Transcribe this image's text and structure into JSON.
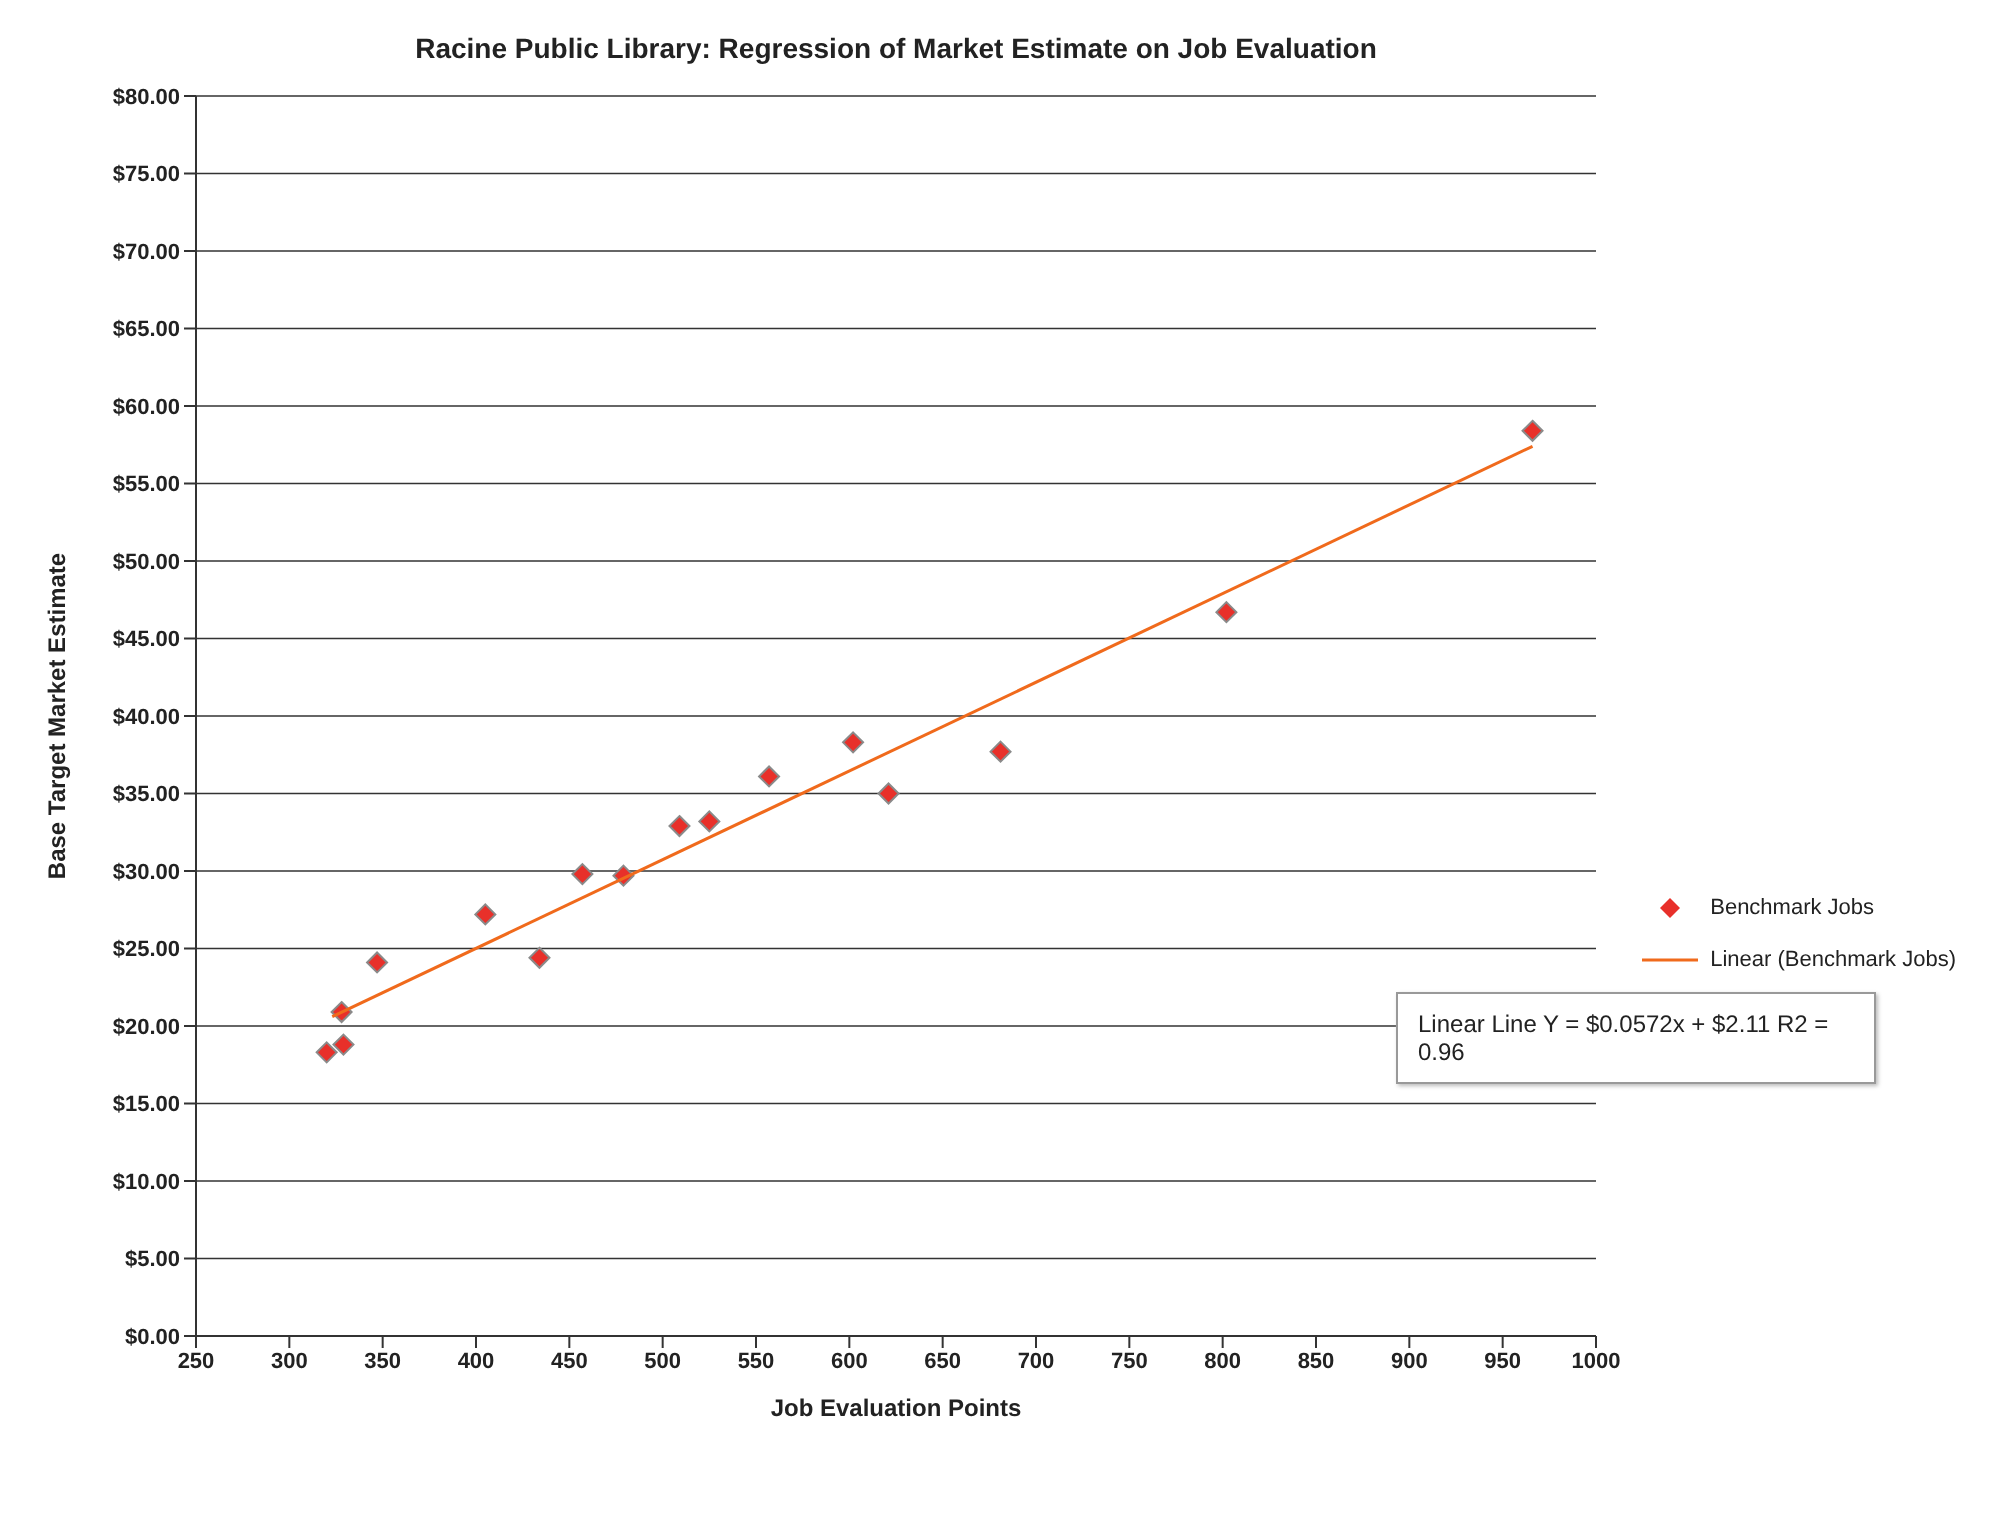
{
  "chart_data": {
    "type": "scatter",
    "title": "Racine Public Library: Regression of Market Estimate on Job Evaluation",
    "xlabel": "Job Evaluation Points",
    "ylabel": "Base Target Market Estimate",
    "series": [
      {
        "name": "Benchmark Jobs",
        "color": "#e8302a",
        "marker": "diamond",
        "x": [
          320,
          328,
          329,
          347,
          405,
          434,
          457,
          479,
          509,
          525,
          557,
          602,
          621,
          681,
          802,
          966
        ],
        "values": [
          18.3,
          20.9,
          18.8,
          24.1,
          27.2,
          24.4,
          29.8,
          29.7,
          32.9,
          33.2,
          36.1,
          38.3,
          35.0,
          37.7,
          46.7,
          58.4
        ]
      },
      {
        "name": "Linear (Benchmark Jobs)",
        "type": "line",
        "color": "#f06a1c",
        "x": [
          323,
          966
        ],
        "values": [
          20.6,
          57.4
        ]
      }
    ],
    "xlim": [
      250,
      1000
    ],
    "xticks": [
      250,
      300,
      350,
      400,
      450,
      500,
      550,
      600,
      650,
      700,
      750,
      800,
      850,
      900,
      950,
      1000
    ],
    "ylim": [
      0,
      80
    ],
    "yticks": [
      {
        "value": 0,
        "label": "$0.00"
      },
      {
        "value": 5,
        "label": "$5.00"
      },
      {
        "value": 10,
        "label": "$10.00"
      },
      {
        "value": 15,
        "label": "$15.00"
      },
      {
        "value": 20,
        "label": "$20.00"
      },
      {
        "value": 25,
        "label": "$25.00"
      },
      {
        "value": 30,
        "label": "$30.00"
      },
      {
        "value": 35,
        "label": "$35.00"
      },
      {
        "value": 40,
        "label": "$40.00"
      },
      {
        "value": 45,
        "label": "$45.00"
      },
      {
        "value": 50,
        "label": "$50.00"
      },
      {
        "value": 55,
        "label": "$55.00"
      },
      {
        "value": 60,
        "label": "$60.00"
      },
      {
        "value": 65,
        "label": "$65.00"
      },
      {
        "value": 70,
        "label": "$70.00"
      },
      {
        "value": 75,
        "label": "$75.00"
      },
      {
        "value": 80,
        "label": "$80.00"
      }
    ],
    "grid": "y",
    "legend": "right",
    "annotations": [
      "Linear Line Y = $0.0572x + $2.11 R2 = 0.96"
    ]
  }
}
